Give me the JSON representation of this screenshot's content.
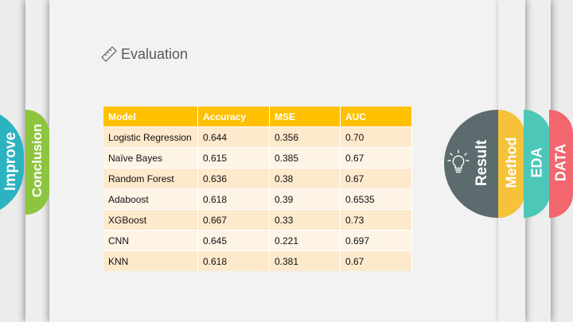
{
  "slide": {
    "title": "Evaluation",
    "icon": "ruler-pencil-icon"
  },
  "tabs_left": [
    {
      "label": "Improve",
      "color": "#2bb4c0"
    },
    {
      "label": "Conclusion",
      "color": "#8dc53e"
    }
  ],
  "tabs_right": [
    {
      "label": "Result",
      "color": "#5c6b6d",
      "icon": "lightbulb-icon"
    },
    {
      "label": "Method",
      "color": "#f5c23a"
    },
    {
      "label": "EDA",
      "color": "#4dc7b8"
    },
    {
      "label": "DATA",
      "color": "#f2666e"
    }
  ],
  "table": {
    "headers": [
      "Model",
      "Accuracy",
      "MSE",
      "AUC"
    ],
    "rows": [
      [
        "Logistic Regression",
        "0.644",
        "0.356",
        "0.70"
      ],
      [
        "Naïve Bayes",
        "0.615",
        "0.385",
        "0.67"
      ],
      [
        "Random Forest",
        "0.636",
        "0.38",
        "0.67"
      ],
      [
        "Adaboost",
        "0.618",
        "0.39",
        "0.6535"
      ],
      [
        "XGBoost",
        "0.667",
        "0.33",
        "0.73"
      ],
      [
        "CNN",
        "0.645",
        "0.221",
        "0.697"
      ],
      [
        "KNN",
        "0.618",
        "0.381",
        "0.67"
      ]
    ]
  }
}
